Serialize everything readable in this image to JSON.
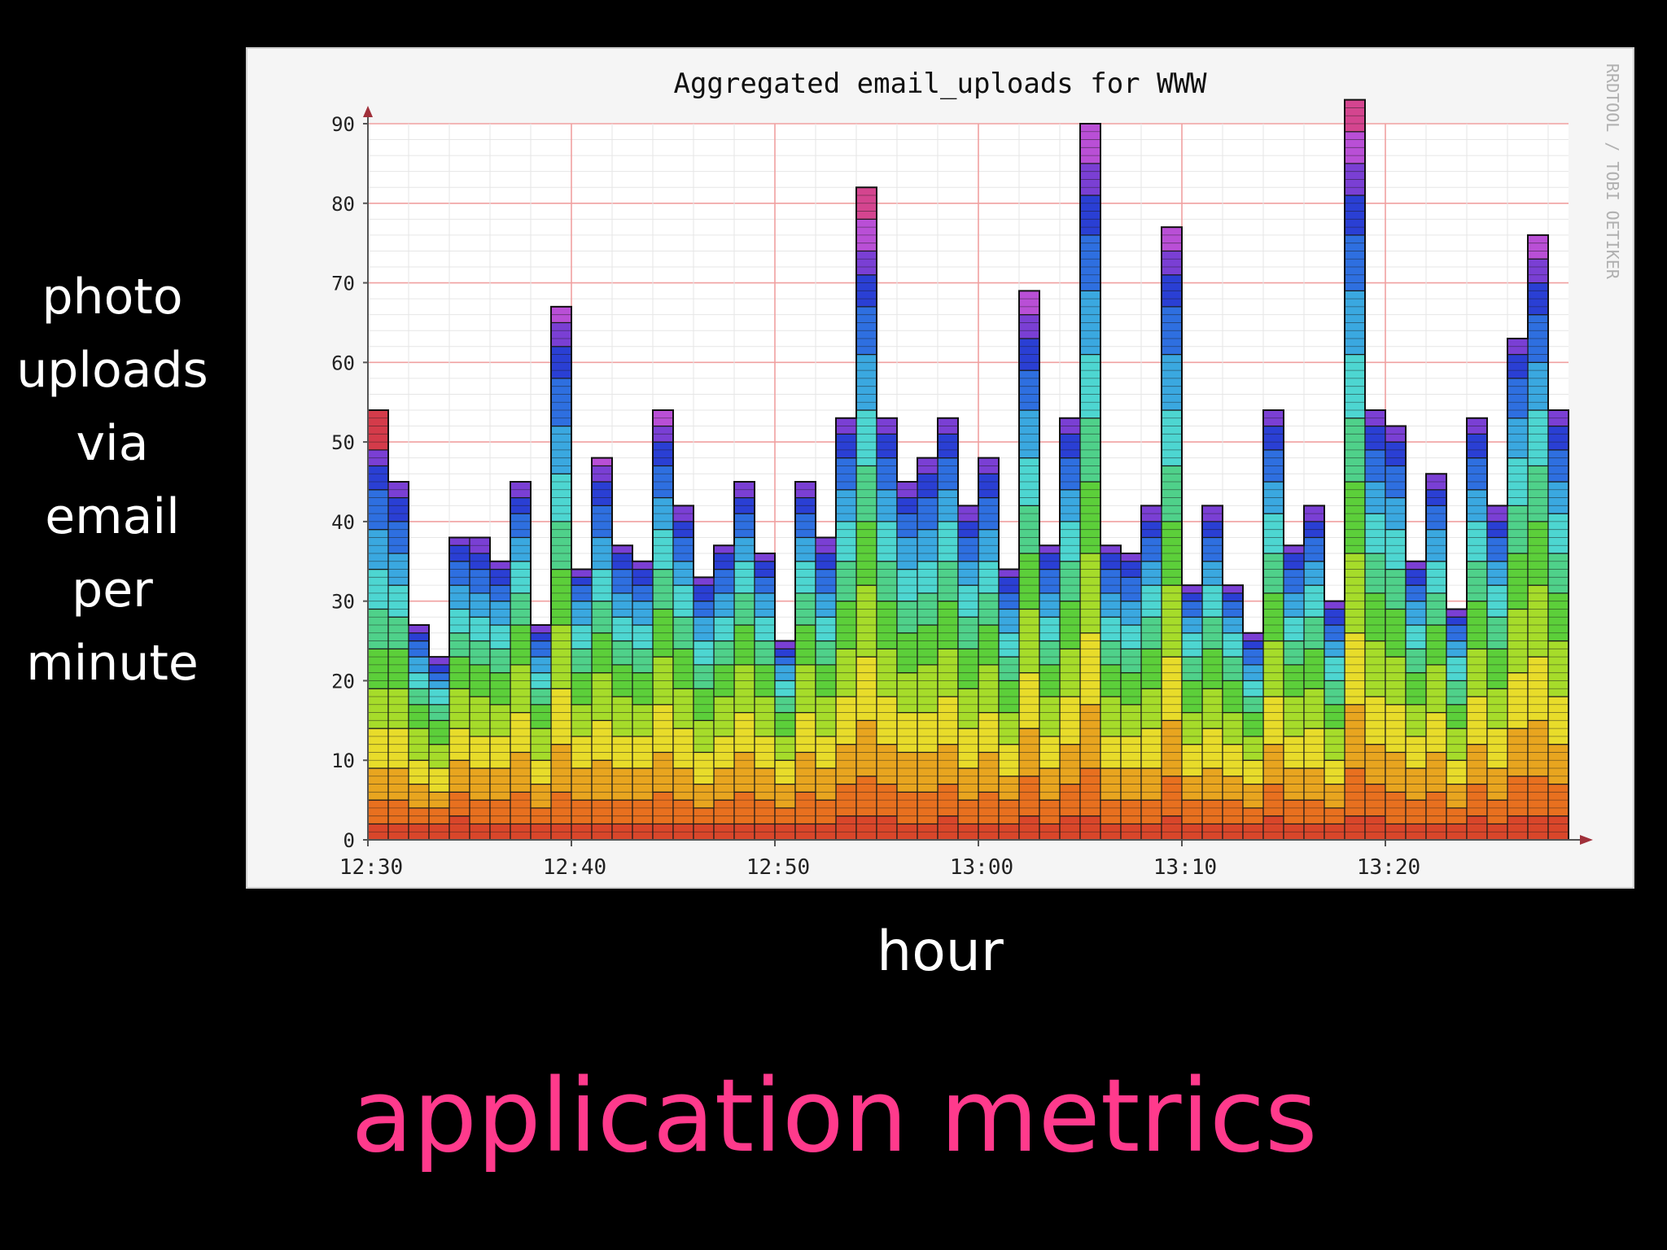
{
  "slide": {
    "ylabel_lines": [
      "photo",
      "uploads",
      "via",
      "email",
      "per",
      "minute"
    ],
    "xlabel": "hour",
    "title": "application metrics"
  },
  "chart_data": {
    "type": "area",
    "title": "Aggregated email_uploads for WWW",
    "watermark": "RRDTOOL / TOBI OETIKER",
    "stacked": true,
    "x_unit": "time (hh:mm), 1-minute steps",
    "x_ticks": [
      "12:30",
      "12:40",
      "12:50",
      "13:00",
      "13:10",
      "13:20"
    ],
    "x_range": [
      "12:30",
      "13:28"
    ],
    "y_ticks": [
      0,
      10,
      20,
      30,
      40,
      50,
      60,
      70,
      80,
      90
    ],
    "ylim": [
      0,
      90
    ],
    "grid": true,
    "total": {
      "x": [
        "12:30",
        "12:31",
        "12:32",
        "12:33",
        "12:34",
        "12:35",
        "12:36",
        "12:37",
        "12:38",
        "12:39",
        "12:40",
        "12:41",
        "12:42",
        "12:43",
        "12:44",
        "12:45",
        "12:46",
        "12:47",
        "12:48",
        "12:49",
        "12:50",
        "12:51",
        "12:52",
        "12:53",
        "12:54",
        "12:55",
        "12:56",
        "12:57",
        "12:58",
        "12:59",
        "13:00",
        "13:01",
        "13:02",
        "13:03",
        "13:04",
        "13:05",
        "13:06",
        "13:07",
        "13:08",
        "13:09",
        "13:10",
        "13:11",
        "13:12",
        "13:13",
        "13:14",
        "13:15",
        "13:16",
        "13:17",
        "13:18",
        "13:19",
        "13:20",
        "13:21",
        "13:22",
        "13:23",
        "13:24",
        "13:25",
        "13:26",
        "13:27",
        "13:28"
      ],
      "values": [
        54,
        45,
        27,
        21,
        34,
        34,
        32,
        41,
        25,
        67,
        30,
        48,
        35,
        32,
        52,
        41,
        30,
        36,
        41,
        34,
        23,
        41,
        38,
        51,
        76,
        53,
        43,
        47,
        51,
        41,
        45,
        30,
        63,
        35,
        50,
        84,
        35,
        33,
        39,
        77,
        29,
        39,
        30,
        24,
        54,
        37,
        38,
        28,
        87,
        53,
        48,
        32,
        45,
        28,
        50,
        42,
        61,
        70,
        54
      ]
    },
    "series": [
      {
        "color": "#d9462a",
        "values": [
          2,
          2,
          2,
          2,
          3,
          2,
          2,
          2,
          2,
          2,
          2,
          2,
          2,
          2,
          2,
          2,
          2,
          2,
          2,
          2,
          2,
          2,
          2,
          3,
          3,
          3,
          2,
          2,
          3,
          2,
          2,
          2,
          3,
          2,
          3,
          3,
          2,
          2,
          2,
          3,
          2,
          2,
          2,
          2,
          3,
          2,
          2,
          2,
          3,
          3,
          2,
          2,
          2,
          2,
          3,
          2,
          3,
          3,
          3
        ]
      },
      {
        "color": "#e8701f",
        "values": [
          3,
          3,
          2,
          2,
          3,
          3,
          3,
          4,
          2,
          4,
          3,
          3,
          3,
          3,
          4,
          3,
          2,
          3,
          4,
          3,
          2,
          4,
          3,
          4,
          5,
          4,
          4,
          4,
          4,
          3,
          4,
          3,
          5,
          3,
          4,
          6,
          3,
          3,
          3,
          5,
          3,
          3,
          3,
          2,
          4,
          3,
          3,
          2,
          6,
          4,
          4,
          3,
          4,
          2,
          4,
          3,
          5,
          5,
          4
        ]
      },
      {
        "color": "#e8a51f",
        "values": [
          4,
          4,
          3,
          2,
          4,
          4,
          4,
          5,
          3,
          6,
          4,
          5,
          4,
          4,
          5,
          4,
          3,
          4,
          5,
          4,
          3,
          5,
          4,
          5,
          7,
          5,
          5,
          5,
          5,
          4,
          5,
          3,
          6,
          4,
          5,
          8,
          4,
          4,
          4,
          7,
          3,
          4,
          3,
          3,
          5,
          4,
          4,
          3,
          8,
          5,
          5,
          4,
          5,
          3,
          5,
          4,
          6,
          7,
          5
        ]
      },
      {
        "color": "#e8dc2a",
        "values": [
          5,
          5,
          3,
          3,
          4,
          4,
          4,
          5,
          3,
          7,
          4,
          5,
          4,
          4,
          6,
          5,
          4,
          4,
          5,
          4,
          3,
          5,
          4,
          6,
          8,
          6,
          5,
          5,
          6,
          5,
          5,
          4,
          7,
          4,
          6,
          9,
          4,
          4,
          5,
          8,
          4,
          5,
          4,
          3,
          6,
          4,
          5,
          3,
          9,
          6,
          6,
          4,
          5,
          3,
          6,
          5,
          7,
          8,
          6
        ]
      },
      {
        "color": "#a6dc2a",
        "values": [
          5,
          5,
          4,
          3,
          5,
          5,
          4,
          6,
          4,
          8,
          4,
          6,
          5,
          4,
          6,
          5,
          4,
          5,
          6,
          5,
          3,
          6,
          5,
          6,
          9,
          6,
          5,
          6,
          6,
          5,
          6,
          4,
          8,
          5,
          6,
          10,
          5,
          4,
          5,
          9,
          4,
          5,
          4,
          3,
          7,
          5,
          5,
          4,
          10,
          7,
          6,
          4,
          6,
          4,
          6,
          5,
          8,
          9,
          7
        ]
      },
      {
        "color": "#5ccf3a",
        "values": [
          5,
          5,
          3,
          3,
          4,
          4,
          4,
          5,
          3,
          7,
          4,
          5,
          4,
          4,
          6,
          5,
          4,
          4,
          5,
          4,
          3,
          5,
          4,
          6,
          8,
          6,
          5,
          5,
          6,
          5,
          5,
          4,
          7,
          4,
          6,
          9,
          4,
          4,
          5,
          8,
          4,
          5,
          4,
          3,
          6,
          4,
          5,
          3,
          9,
          6,
          6,
          4,
          5,
          3,
          6,
          5,
          7,
          8,
          6
        ]
      },
      {
        "color": "#4fd18a",
        "values": [
          5,
          4,
          2,
          2,
          3,
          3,
          3,
          4,
          2,
          6,
          3,
          4,
          3,
          3,
          5,
          4,
          3,
          3,
          4,
          3,
          2,
          4,
          3,
          5,
          7,
          5,
          4,
          4,
          5,
          4,
          4,
          3,
          6,
          3,
          5,
          8,
          3,
          3,
          4,
          7,
          3,
          4,
          3,
          2,
          5,
          3,
          4,
          3,
          8,
          5,
          5,
          3,
          4,
          3,
          5,
          4,
          6,
          7,
          5
        ]
      },
      {
        "color": "#4dd6d1",
        "values": [
          5,
          4,
          2,
          2,
          3,
          3,
          3,
          4,
          2,
          6,
          3,
          4,
          3,
          3,
          5,
          4,
          3,
          3,
          4,
          3,
          2,
          4,
          3,
          5,
          7,
          5,
          4,
          4,
          5,
          4,
          4,
          3,
          6,
          3,
          5,
          8,
          3,
          3,
          4,
          7,
          3,
          4,
          3,
          2,
          5,
          3,
          4,
          3,
          8,
          5,
          5,
          3,
          4,
          3,
          5,
          4,
          6,
          7,
          5
        ]
      },
      {
        "color": "#3aa8e0",
        "values": [
          5,
          4,
          2,
          1,
          3,
          3,
          3,
          3,
          2,
          6,
          3,
          4,
          3,
          3,
          4,
          3,
          3,
          3,
          3,
          3,
          2,
          3,
          3,
          4,
          7,
          4,
          4,
          4,
          4,
          3,
          4,
          3,
          6,
          3,
          4,
          8,
          3,
          3,
          3,
          7,
          2,
          3,
          2,
          2,
          4,
          3,
          3,
          2,
          8,
          4,
          4,
          3,
          4,
          2,
          4,
          3,
          5,
          6,
          4
        ]
      },
      {
        "color": "#2e6fe0",
        "values": [
          5,
          4,
          2,
          1,
          3,
          3,
          2,
          3,
          2,
          6,
          2,
          4,
          3,
          2,
          4,
          3,
          2,
          3,
          3,
          2,
          1,
          3,
          3,
          4,
          6,
          4,
          3,
          4,
          4,
          3,
          4,
          2,
          5,
          3,
          4,
          7,
          3,
          3,
          3,
          6,
          2,
          3,
          2,
          2,
          4,
          3,
          3,
          2,
          7,
          4,
          4,
          2,
          3,
          2,
          4,
          3,
          5,
          6,
          4
        ]
      },
      {
        "color": "#2a3fd4",
        "values": [
          3,
          3,
          1,
          1,
          2,
          2,
          2,
          2,
          1,
          4,
          1,
          3,
          2,
          2,
          3,
          2,
          2,
          2,
          2,
          2,
          1,
          2,
          2,
          3,
          4,
          3,
          2,
          3,
          3,
          2,
          3,
          2,
          4,
          2,
          3,
          5,
          2,
          2,
          2,
          4,
          1,
          2,
          1,
          1,
          3,
          2,
          2,
          2,
          5,
          3,
          3,
          2,
          2,
          1,
          3,
          2,
          3,
          4,
          3
        ]
      },
      {
        "color": "#7a3fd4",
        "values": [
          2,
          2,
          1,
          1,
          1,
          2,
          1,
          2,
          1,
          3,
          1,
          2,
          1,
          1,
          2,
          2,
          1,
          1,
          2,
          1,
          1,
          2,
          2,
          2,
          3,
          2,
          2,
          2,
          2,
          2,
          2,
          1,
          3,
          1,
          2,
          4,
          1,
          1,
          2,
          3,
          1,
          2,
          1,
          1,
          2,
          1,
          2,
          1,
          4,
          2,
          2,
          1,
          2,
          1,
          2,
          2,
          2,
          3,
          2
        ]
      },
      {
        "color": "#b94fd6",
        "values": [
          0,
          0,
          0,
          0,
          0,
          0,
          0,
          0,
          0,
          2,
          0,
          1,
          0,
          0,
          2,
          0,
          0,
          0,
          0,
          0,
          0,
          0,
          0,
          0,
          4,
          0,
          0,
          0,
          0,
          0,
          0,
          0,
          3,
          0,
          0,
          5,
          0,
          0,
          0,
          3,
          0,
          0,
          0,
          0,
          0,
          0,
          0,
          0,
          4,
          0,
          0,
          0,
          0,
          0,
          0,
          0,
          0,
          3,
          0
        ]
      },
      {
        "color": "#d4458f",
        "values": [
          0,
          0,
          0,
          0,
          0,
          0,
          0,
          0,
          0,
          0,
          0,
          0,
          0,
          0,
          0,
          0,
          0,
          0,
          0,
          0,
          0,
          0,
          0,
          0,
          4,
          0,
          0,
          0,
          0,
          0,
          0,
          0,
          0,
          0,
          0,
          0,
          0,
          0,
          0,
          0,
          0,
          0,
          0,
          0,
          0,
          0,
          0,
          0,
          4,
          0,
          0,
          0,
          0,
          0,
          0,
          0,
          0,
          0,
          0
        ]
      },
      {
        "color": "#d43b4a",
        "values": [
          0,
          0,
          0,
          0,
          0,
          0,
          0,
          0,
          0,
          0,
          0,
          0,
          0,
          0,
          0,
          0,
          0,
          0,
          0,
          0,
          0,
          0,
          0,
          0,
          0,
          0,
          0,
          0,
          0,
          0,
          0,
          0,
          0,
          0,
          0,
          0,
          0,
          0,
          0,
          0,
          0,
          0,
          0,
          0,
          0,
          0,
          0,
          0,
          0,
          0,
          0,
          0,
          0,
          0,
          0,
          0,
          0,
          0,
          0
        ]
      }
    ]
  }
}
